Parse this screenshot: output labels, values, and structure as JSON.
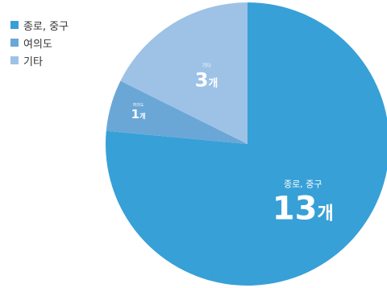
{
  "chart_data": {
    "type": "pie",
    "title": "",
    "unit": "개",
    "start": "top-center-clockwise",
    "legend_position": "top-left",
    "slices": [
      {
        "label": "종로, 중구",
        "value": 13,
        "display": "13개",
        "color": "#37a0d7"
      },
      {
        "label": "여의도",
        "value": 1,
        "display": "1개",
        "color": "#6aa7d6"
      },
      {
        "label": "기타",
        "value": 3,
        "display": "3개",
        "color": "#9dc2e6"
      }
    ]
  }
}
